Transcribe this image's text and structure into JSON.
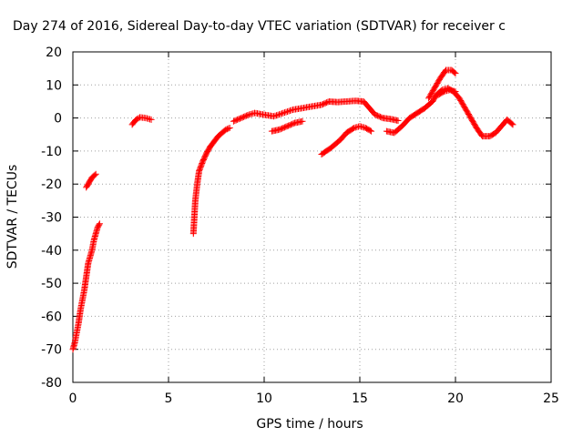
{
  "chart_data": {
    "type": "scatter",
    "title": "Day 274 of 2016, Sidereal Day-to-day VTEC variation (SDTVAR) for receiver c",
    "xlabel": "GPS time / hours",
    "ylabel": "SDTVAR / TECUs",
    "xlim": [
      0,
      25
    ],
    "ylim": [
      -80,
      20
    ],
    "x_ticks": [
      "0",
      "5",
      "10",
      "15",
      "20",
      "25"
    ],
    "y_ticks": [
      "-80",
      "-70",
      "-60",
      "-50",
      "-40",
      "-30",
      "-20",
      "-10",
      "0",
      "10",
      "20"
    ],
    "grid": true,
    "marker": "+",
    "color": "#ff0000",
    "series": [
      {
        "segments": [
          [
            [
              0.0,
              -70
            ],
            [
              0.1,
              -68
            ],
            [
              0.2,
              -65
            ],
            [
              0.3,
              -62
            ],
            [
              0.4,
              -58
            ],
            [
              0.5,
              -55
            ],
            [
              0.6,
              -52
            ],
            [
              0.7,
              -48
            ],
            [
              0.8,
              -44
            ],
            [
              0.9,
              -42
            ],
            [
              1.0,
              -40
            ],
            [
              1.1,
              -37
            ],
            [
              1.2,
              -35
            ],
            [
              1.3,
              -33
            ],
            [
              1.4,
              -32
            ]
          ],
          [
            [
              0.7,
              -21
            ],
            [
              0.8,
              -20
            ],
            [
              0.9,
              -19
            ],
            [
              1.0,
              -18
            ],
            [
              1.1,
              -17.5
            ],
            [
              1.2,
              -17
            ]
          ],
          [
            [
              3.1,
              -2
            ],
            [
              3.3,
              -0.5
            ],
            [
              3.5,
              0.2
            ],
            [
              3.8,
              0
            ],
            [
              4.1,
              -0.5
            ]
          ],
          [
            [
              6.3,
              -35
            ],
            [
              6.35,
              -30
            ],
            [
              6.4,
              -25
            ],
            [
              6.5,
              -20
            ],
            [
              6.6,
              -16
            ],
            [
              6.8,
              -13
            ],
            [
              7.0,
              -10.5
            ],
            [
              7.2,
              -8.5
            ],
            [
              7.4,
              -7
            ],
            [
              7.6,
              -5.5
            ],
            [
              7.8,
              -4.5
            ],
            [
              8.0,
              -3.5
            ],
            [
              8.2,
              -3
            ]
          ],
          [
            [
              8.4,
              -1
            ],
            [
              8.8,
              0
            ],
            [
              9.2,
              1
            ],
            [
              9.5,
              1.5
            ],
            [
              10.0,
              1
            ],
            [
              10.5,
              0.5
            ],
            [
              11.0,
              1.5
            ],
            [
              11.5,
              2.5
            ],
            [
              12.0,
              3
            ],
            [
              12.5,
              3.5
            ],
            [
              13.0,
              4
            ],
            [
              13.4,
              5
            ],
            [
              13.8,
              4.8
            ],
            [
              14.3,
              5
            ],
            [
              14.8,
              5.2
            ],
            [
              15.2,
              5
            ],
            [
              15.5,
              3
            ],
            [
              15.8,
              1
            ],
            [
              16.2,
              0
            ],
            [
              16.6,
              -0.3
            ],
            [
              17.0,
              -0.8
            ]
          ],
          [
            [
              10.4,
              -4
            ],
            [
              10.8,
              -3.5
            ],
            [
              11.2,
              -2.5
            ],
            [
              11.6,
              -1.5
            ],
            [
              12.0,
              -1
            ]
          ],
          [
            [
              13.0,
              -11
            ],
            [
              13.5,
              -9
            ],
            [
              14.0,
              -6.5
            ],
            [
              14.3,
              -4.5
            ],
            [
              14.7,
              -3
            ],
            [
              15.0,
              -2.5
            ],
            [
              15.3,
              -3
            ],
            [
              15.6,
              -4
            ]
          ],
          [
            [
              16.4,
              -4
            ],
            [
              16.8,
              -4.5
            ],
            [
              17.2,
              -2.5
            ],
            [
              17.6,
              0
            ],
            [
              18.0,
              1.5
            ],
            [
              18.4,
              3
            ],
            [
              18.8,
              5
            ],
            [
              19.0,
              7
            ],
            [
              19.3,
              8.5
            ],
            [
              19.6,
              9
            ],
            [
              19.9,
              8
            ],
            [
              20.2,
              6
            ],
            [
              20.5,
              3
            ],
            [
              20.8,
              0
            ],
            [
              21.1,
              -3
            ],
            [
              21.4,
              -5.5
            ],
            [
              21.8,
              -5.5
            ],
            [
              22.1,
              -4.5
            ],
            [
              22.4,
              -2.5
            ],
            [
              22.7,
              -0.5
            ],
            [
              23.0,
              -2
            ]
          ],
          [
            [
              18.6,
              6
            ],
            [
              18.9,
              9
            ],
            [
              19.2,
              12
            ],
            [
              19.5,
              14.5
            ],
            [
              19.8,
              14.5
            ],
            [
              20.0,
              13.5
            ]
          ],
          [
            [
              19.1,
              7
            ],
            [
              19.4,
              8
            ],
            [
              19.7,
              8.5
            ],
            [
              20.0,
              8
            ]
          ]
        ]
      }
    ]
  }
}
